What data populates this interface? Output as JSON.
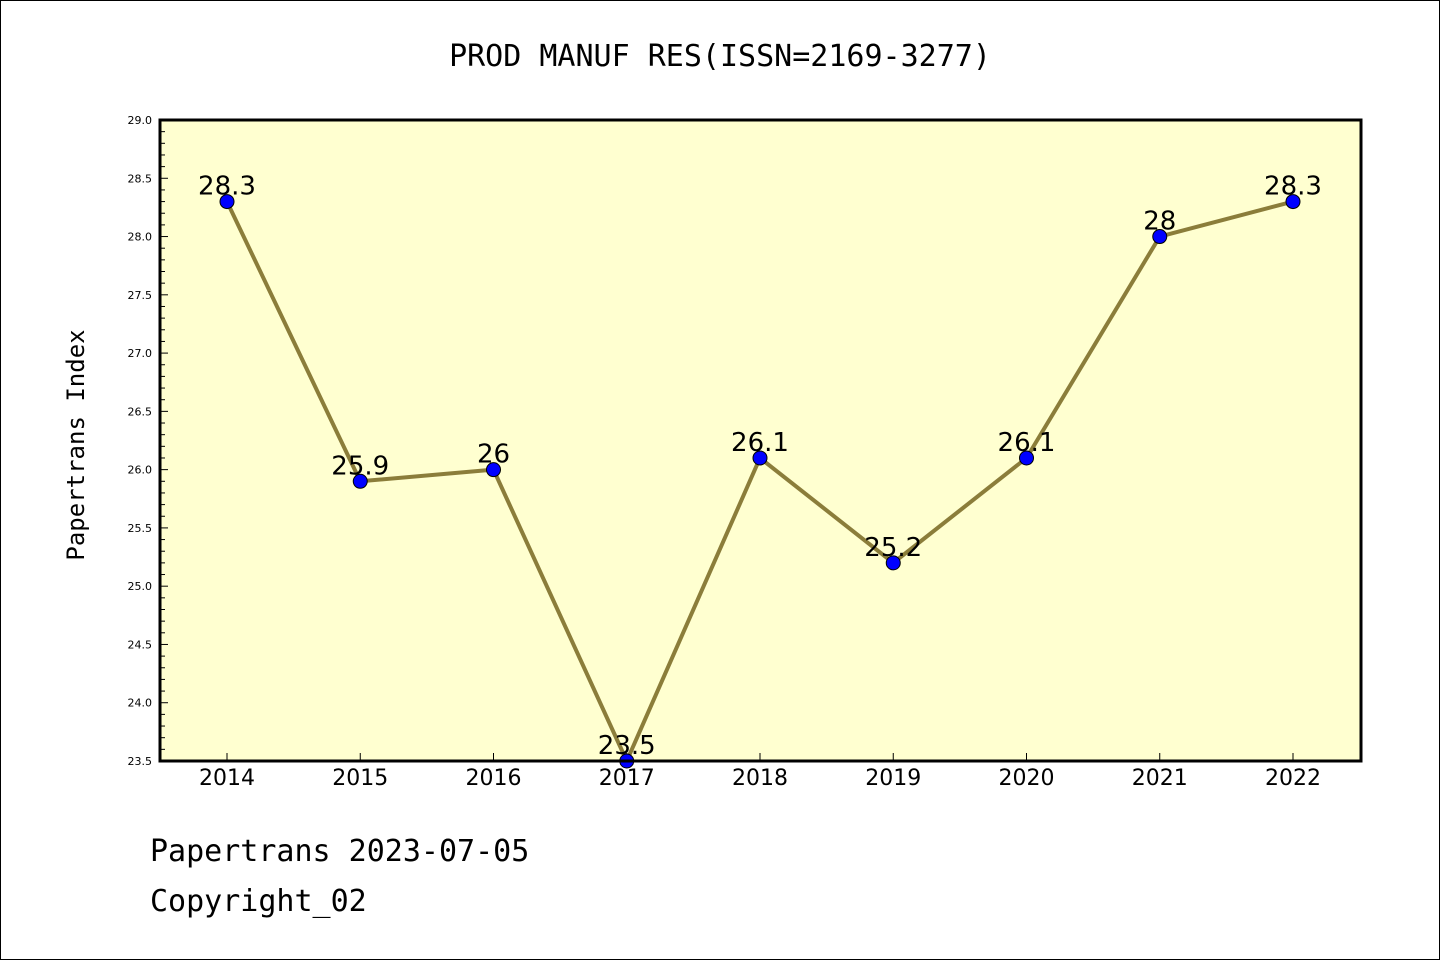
{
  "chart_data": {
    "type": "line",
    "title": "PROD MANUF RES(ISSN=2169-3277)",
    "xlabel": "",
    "ylabel": "Papertrans Index",
    "categories": [
      "2014",
      "2015",
      "2016",
      "2017",
      "2018",
      "2019",
      "2020",
      "2021",
      "2022"
    ],
    "series": [
      {
        "values": [
          28.3,
          25.9,
          26.0,
          23.5,
          26.1,
          25.2,
          26.1,
          28.0,
          28.3
        ],
        "point_labels": [
          "28.3",
          "25.9",
          "26",
          "23.5",
          "26.1",
          "25.2",
          "26.1",
          "28",
          "28.3"
        ]
      }
    ],
    "ylim": [
      23.5,
      29.0
    ],
    "yticks": [
      "23.5",
      "24.0",
      "24.5",
      "25.0",
      "25.5",
      "26.0",
      "26.5",
      "27.0",
      "27.5",
      "28.0",
      "28.5",
      "29.0"
    ],
    "grid": false,
    "colors": {
      "plot_background": "#ffffd0",
      "line": "#8b7d3a",
      "marker": "#0000ff"
    }
  },
  "footer": {
    "line1": "Papertrans 2023-07-05",
    "line2": "Copyright_02"
  }
}
